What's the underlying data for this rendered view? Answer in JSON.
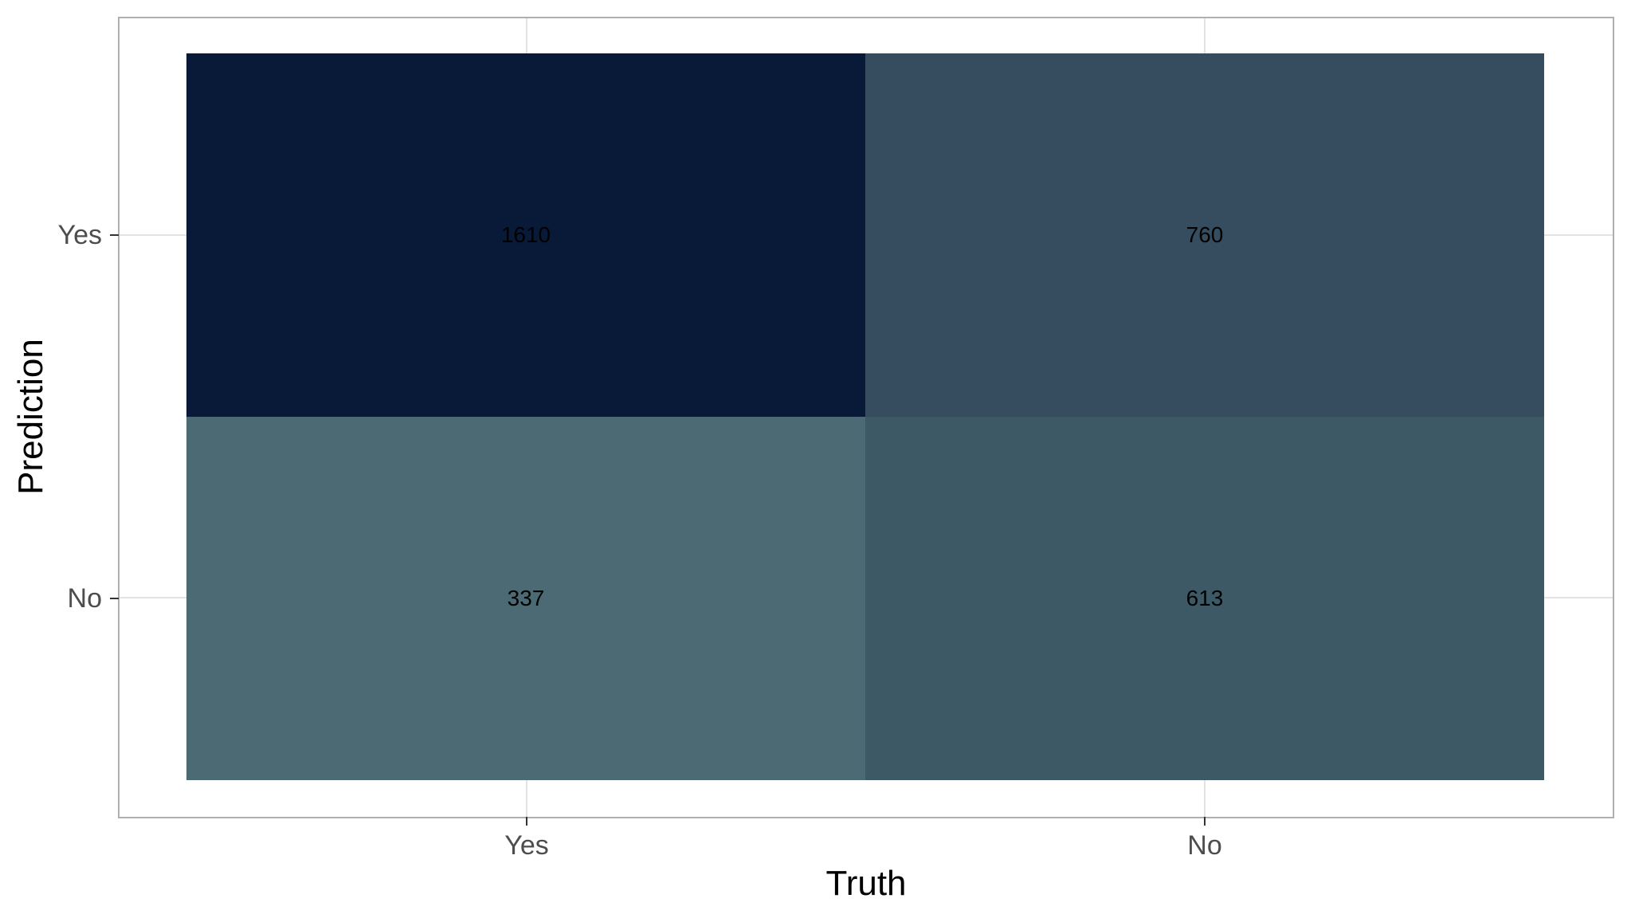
{
  "chart_data": {
    "type": "heatmap",
    "title": "",
    "xlabel": "Truth",
    "ylabel": "Prediction",
    "x_categories": [
      "Yes",
      "No"
    ],
    "y_categories": [
      "Yes",
      "No"
    ],
    "legend": "none",
    "grid": true,
    "cells": [
      {
        "prediction": "Yes",
        "truth": "Yes",
        "value": "1610",
        "color": "#081A38"
      },
      {
        "prediction": "Yes",
        "truth": "No",
        "value": "760",
        "color": "#364D60"
      },
      {
        "prediction": "No",
        "truth": "Yes",
        "value": "337",
        "color": "#4B6A73"
      },
      {
        "prediction": "No",
        "truth": "No",
        "value": "613",
        "color": "#3D5966"
      }
    ]
  },
  "axes": {
    "x": {
      "title": "Truth",
      "ticks": [
        "Yes",
        "No"
      ]
    },
    "y": {
      "title": "Prediction",
      "ticks": [
        "Yes",
        "No"
      ]
    }
  },
  "colors": {
    "background": "#FFFFFF",
    "panel_border": "#AFAFAF",
    "gridline": "#E3E3E3",
    "tick_mark": "#333333",
    "tick_label": "#4D4D4D",
    "axis_title": "#000000",
    "cell_label": "#000000"
  }
}
